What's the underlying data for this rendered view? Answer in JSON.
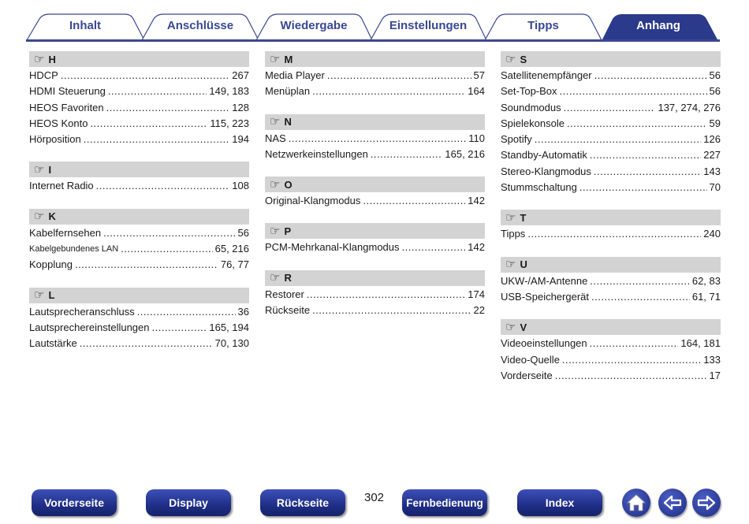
{
  "tabs": [
    "Inhalt",
    "Anschlüsse",
    "Wiedergabe",
    "Einstellungen",
    "Tipps",
    "Anhang"
  ],
  "active_tab": "Anhang",
  "colors": {
    "tab_line": "#3a4891",
    "active_tab": "#2b3a8a",
    "section_bg": "#d3d3d3"
  },
  "columns": [
    [
      {
        "letter": "H",
        "entries": [
          [
            "HDCP",
            "267"
          ],
          [
            "HDMI Steuerung",
            "149, 183"
          ],
          [
            "HEOS Favoriten",
            "128"
          ],
          [
            "HEOS Konto",
            "115, 223"
          ],
          [
            "Hörposition",
            "194"
          ]
        ]
      },
      {
        "letter": "I",
        "entries": [
          [
            "Internet Radio",
            "108"
          ]
        ]
      },
      {
        "letter": "K",
        "entries": [
          [
            "Kabelfernsehen",
            "56"
          ],
          [
            "Kabelgebundenes LAN",
            "65, 216"
          ],
          [
            "Kopplung",
            "76, 77"
          ]
        ]
      },
      {
        "letter": "L",
        "entries": [
          [
            "Lautsprecheranschluss",
            "36"
          ],
          [
            "Lautsprechereinstellungen",
            "165, 194"
          ],
          [
            "Lautstärke",
            "70, 130"
          ]
        ]
      }
    ],
    [
      {
        "letter": "M",
        "entries": [
          [
            "Media Player",
            "57"
          ],
          [
            "Menüplan",
            "164"
          ]
        ]
      },
      {
        "letter": "N",
        "entries": [
          [
            "NAS",
            "110"
          ],
          [
            "Netzwerkeinstellungen",
            "165, 216"
          ]
        ]
      },
      {
        "letter": "O",
        "entries": [
          [
            "Original-Klangmodus",
            "142"
          ]
        ]
      },
      {
        "letter": "P",
        "entries": [
          [
            "PCM-Mehrkanal-Klangmodus",
            "142"
          ]
        ]
      },
      {
        "letter": "R",
        "entries": [
          [
            "Restorer",
            "174"
          ],
          [
            "Rückseite",
            "22"
          ]
        ]
      }
    ],
    [
      {
        "letter": "S",
        "entries": [
          [
            "Satellitenempfänger",
            "56"
          ],
          [
            "Set-Top-Box",
            "56"
          ],
          [
            "Soundmodus",
            "137, 274, 276"
          ],
          [
            "Spielekonsole",
            "59"
          ],
          [
            "Spotify",
            "126"
          ],
          [
            "Standby-Automatik",
            "227"
          ],
          [
            "Stereo-Klangmodus",
            "143"
          ],
          [
            "Stummschaltung",
            "70"
          ]
        ]
      },
      {
        "letter": "T",
        "entries": [
          [
            "Tipps",
            "240"
          ]
        ]
      },
      {
        "letter": "U",
        "entries": [
          [
            "UKW-/AM-Antenne",
            "62, 83"
          ],
          [
            "USB-Speichergerät",
            "61, 71"
          ]
        ]
      },
      {
        "letter": "V",
        "entries": [
          [
            "Videoeinstellungen",
            "164, 181"
          ],
          [
            "Video-Quelle",
            "133"
          ],
          [
            "Vorderseite",
            "17"
          ]
        ]
      }
    ]
  ],
  "footer": {
    "page_number": "302",
    "buttons": [
      "Vorderseite",
      "Display",
      "Rückseite",
      "Fernbedienung",
      "Index"
    ],
    "icons": [
      "home-icon",
      "arrow-left-icon",
      "arrow-right-icon"
    ]
  }
}
